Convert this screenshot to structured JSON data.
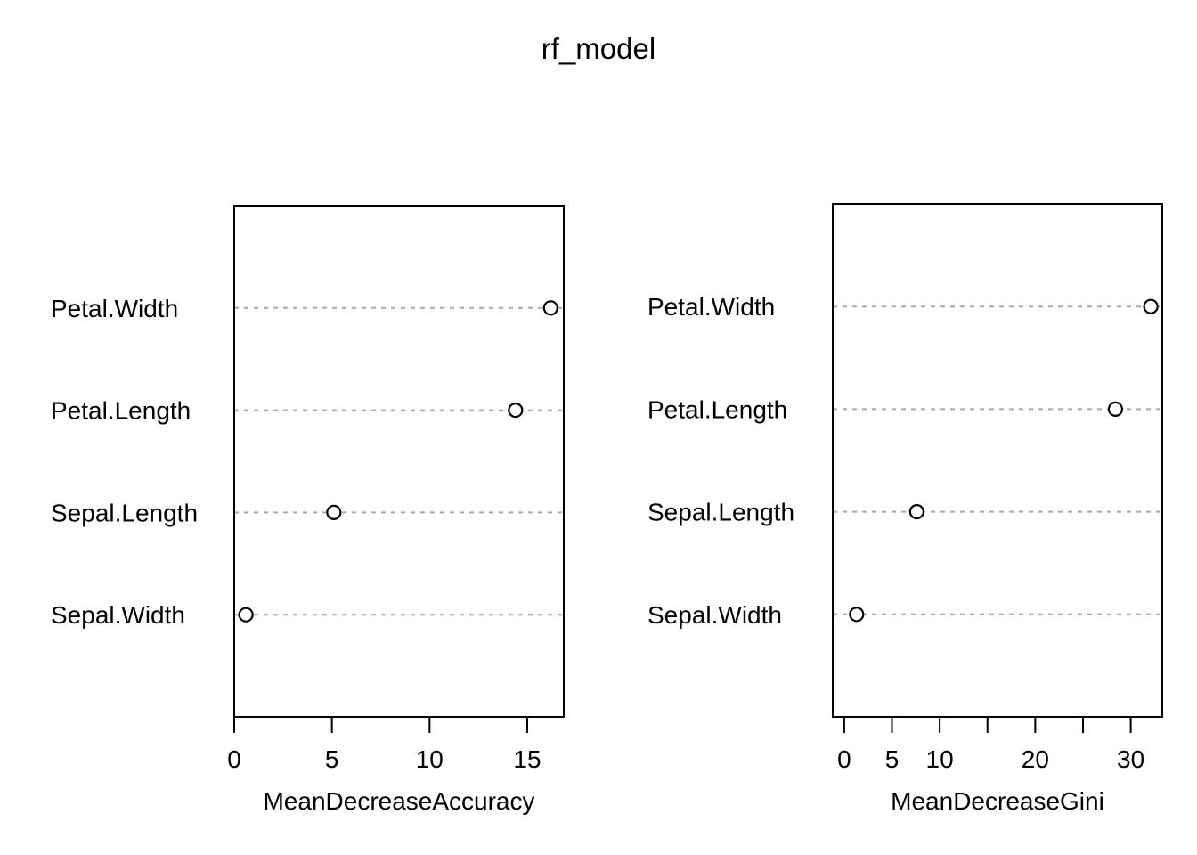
{
  "title": "rf_model",
  "colors": {
    "background": "#ffffff",
    "foreground": "#000000",
    "gridline": "#a8a8a8"
  },
  "chart_data": [
    {
      "type": "scatter",
      "subtype": "dotchart",
      "title": "",
      "xlabel": "MeanDecreaseAccuracy",
      "ylabel": "",
      "categories": [
        "Petal.Width",
        "Petal.Length",
        "Sepal.Length",
        "Sepal.Width"
      ],
      "values": [
        16.2,
        14.4,
        5.1,
        0.6
      ],
      "xlim": [
        0,
        16.87
      ],
      "xticks": [
        0,
        5,
        10,
        15
      ],
      "xtick_labels": [
        "0",
        "5",
        "10",
        "15"
      ],
      "grid": "horizontal-dashed",
      "point_style": "open-circle",
      "legend": "none"
    },
    {
      "type": "scatter",
      "subtype": "dotchart",
      "title": "",
      "xlabel": "MeanDecreaseGini",
      "ylabel": "",
      "categories": [
        "Petal.Width",
        "Petal.Length",
        "Sepal.Length",
        "Sepal.Width"
      ],
      "values": [
        32.1,
        28.4,
        7.6,
        1.3
      ],
      "xlim": [
        -1.2,
        33.3
      ],
      "xticks": [
        0,
        5,
        10,
        15,
        20,
        25,
        30
      ],
      "xtick_labels": [
        "0",
        "5",
        "10",
        "",
        "20",
        "",
        "30"
      ],
      "grid": "horizontal-dashed",
      "point_style": "open-circle",
      "legend": "none"
    }
  ]
}
